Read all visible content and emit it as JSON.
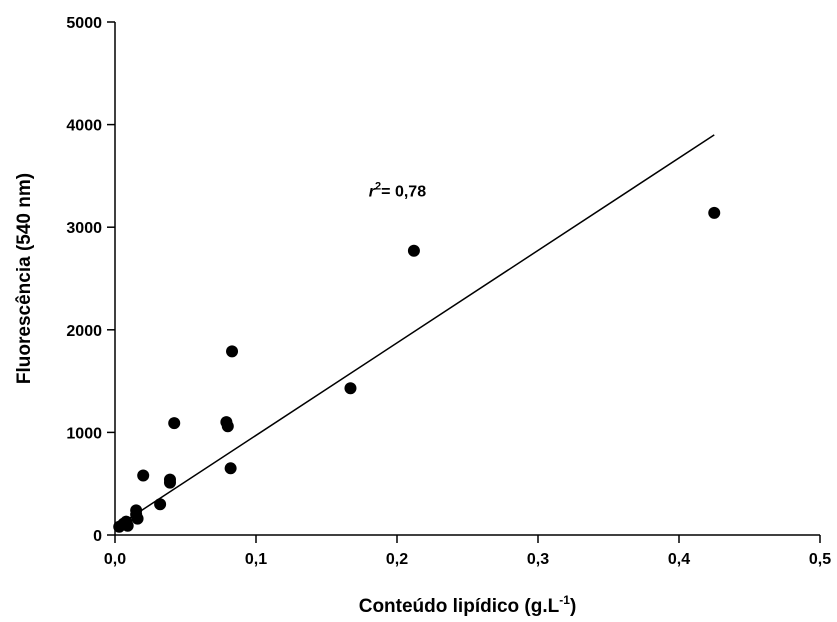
{
  "chart_data": {
    "type": "scatter",
    "title": "",
    "xlabel": "Conteúdo lipídico (g.L",
    "xlabel_superscript": "-1",
    "xlabel_suffix": ")",
    "ylabel": "Fluorescência (540 nm)",
    "xlim": [
      0,
      0.5
    ],
    "ylim": [
      0,
      5000
    ],
    "x_ticks": [
      0,
      0.1,
      0.2,
      0.3,
      0.4,
      0.5
    ],
    "x_tick_labels": [
      "0,0",
      "0,1",
      "0,2",
      "0,3",
      "0,4",
      "0,5"
    ],
    "y_ticks": [
      0,
      1000,
      2000,
      3000,
      4000,
      5000
    ],
    "y_tick_labels": [
      "0",
      "1000",
      "2000",
      "3000",
      "4000",
      "5000"
    ],
    "grid": false,
    "marker_color": "#000000",
    "series": [
      {
        "points": [
          {
            "x": 0.003,
            "y": 80
          },
          {
            "x": 0.006,
            "y": 110
          },
          {
            "x": 0.008,
            "y": 130
          },
          {
            "x": 0.009,
            "y": 90
          },
          {
            "x": 0.015,
            "y": 240
          },
          {
            "x": 0.015,
            "y": 200
          },
          {
            "x": 0.016,
            "y": 160
          },
          {
            "x": 0.02,
            "y": 580
          },
          {
            "x": 0.032,
            "y": 300
          },
          {
            "x": 0.039,
            "y": 540
          },
          {
            "x": 0.039,
            "y": 510
          },
          {
            "x": 0.042,
            "y": 1090
          },
          {
            "x": 0.079,
            "y": 1100
          },
          {
            "x": 0.08,
            "y": 1060
          },
          {
            "x": 0.082,
            "y": 650
          },
          {
            "x": 0.083,
            "y": 1790
          },
          {
            "x": 0.167,
            "y": 1430
          },
          {
            "x": 0.212,
            "y": 2770
          },
          {
            "x": 0.425,
            "y": 3140
          }
        ]
      }
    ],
    "regression_line": {
      "x_start": 0.0,
      "y_start": 70,
      "x_end": 0.425,
      "y_end": 3900
    },
    "annotation": {
      "prefix": "r",
      "superscript": "2",
      "text": "= 0,78",
      "x": 0.18,
      "y": 3300
    }
  }
}
